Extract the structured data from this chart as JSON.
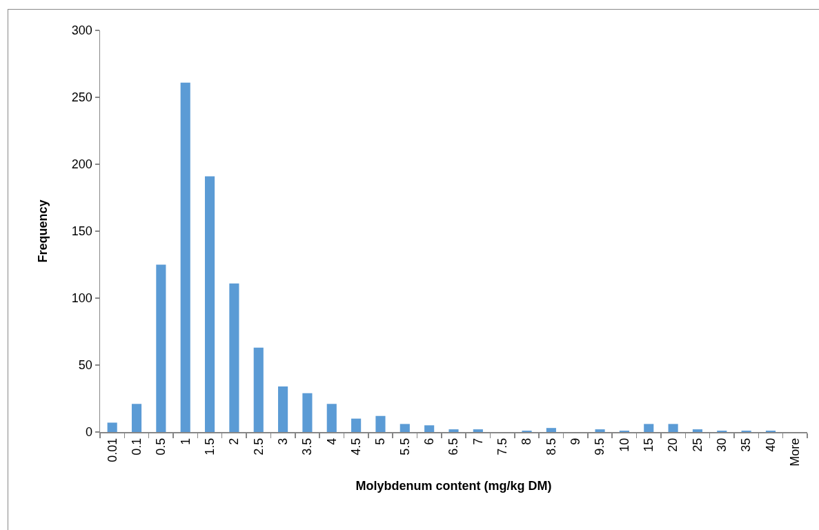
{
  "chart_data": {
    "type": "bar",
    "xlabel": "Molybdenum content (mg/kg DM)",
    "ylabel": "Frequency",
    "categories": [
      "0.01",
      "0.1",
      "0.5",
      "1",
      "1.5",
      "2",
      "2.5",
      "3",
      "3.5",
      "4",
      "4.5",
      "5",
      "5.5",
      "6",
      "6.5",
      "7",
      "7.5",
      "8",
      "8.5",
      "9",
      "9.5",
      "10",
      "15",
      "20",
      "25",
      "30",
      "35",
      "40",
      "More"
    ],
    "values": [
      7,
      21,
      125,
      261,
      191,
      111,
      63,
      34,
      29,
      21,
      10,
      12,
      6,
      5,
      2,
      2,
      0,
      1,
      3,
      0,
      2,
      1,
      6,
      6,
      2,
      1,
      1,
      1,
      0
    ],
    "color": "#5b9bd5",
    "ylim": [
      0,
      300
    ],
    "yticks": [
      0,
      50,
      100,
      150,
      200,
      250,
      300
    ]
  }
}
